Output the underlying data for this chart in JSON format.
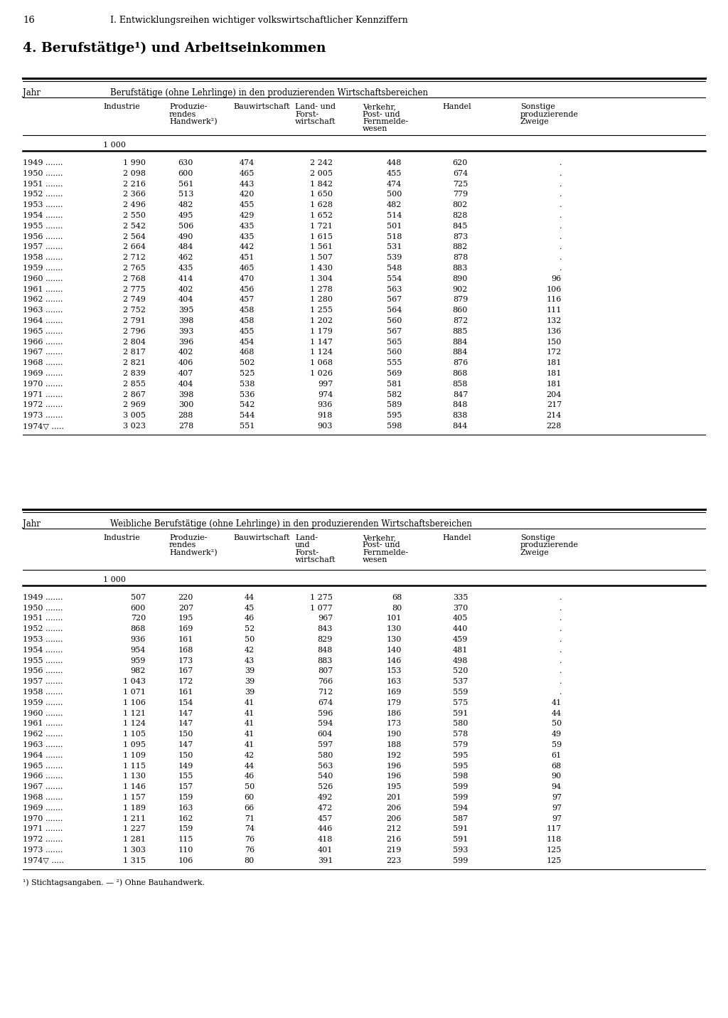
{
  "page_num": "16",
  "header_text": "I. Entwicklungsreihen wichtiger volkswirtschaftlicher Kennziffern",
  "section_title": "4. Berufstätige¹) und Arbeitseinkommen",
  "table1": {
    "title": "Berufstätige (ohne Lehrlinge) in den produzierenden Wirtschaftsbereichen",
    "unit": "1 000",
    "rows": [
      [
        "1949 .......",
        "1 990",
        "630",
        "474",
        "2 242",
        "448",
        "620",
        "."
      ],
      [
        "1950 .......",
        "2 098",
        "600",
        "465",
        "2 005",
        "455",
        "674",
        "."
      ],
      [
        "1951 .......",
        "2 216",
        "561",
        "443",
        "1 842",
        "474",
        "725",
        "."
      ],
      [
        "1952 .......",
        "2 366",
        "513",
        "420",
        "1 650",
        "500",
        "779",
        "."
      ],
      [
        "1953 .......",
        "2 496",
        "482",
        "455",
        "1 628",
        "482",
        "802",
        "."
      ],
      [
        "1954 .......",
        "2 550",
        "495",
        "429",
        "1 652",
        "514",
        "828",
        "."
      ],
      [
        "1955 .......",
        "2 542",
        "506",
        "435",
        "1 721",
        "501",
        "845",
        "."
      ],
      [
        "1956 .......",
        "2 564",
        "490",
        "435",
        "1 615",
        "518",
        "873",
        "."
      ],
      [
        "1957 .......",
        "2 664",
        "484",
        "442",
        "1 561",
        "531",
        "882",
        "."
      ],
      [
        "1958 .......",
        "2 712",
        "462",
        "451",
        "1 507",
        "539",
        "878",
        "."
      ],
      [
        "1959 .......",
        "2 765",
        "435",
        "465",
        "1 430",
        "548",
        "883",
        "."
      ],
      [
        "1960 .......",
        "2 768",
        "414",
        "470",
        "1 304",
        "554",
        "890",
        "96"
      ],
      [
        "1961 .......",
        "2 775",
        "402",
        "456",
        "1 278",
        "563",
        "902",
        "106"
      ],
      [
        "1962 .......",
        "2 749",
        "404",
        "457",
        "1 280",
        "567",
        "879",
        "116"
      ],
      [
        "1963 .......",
        "2 752",
        "395",
        "458",
        "1 255",
        "564",
        "860",
        "111"
      ],
      [
        "1964 .......",
        "2 791",
        "398",
        "458",
        "1 202",
        "560",
        "872",
        "132"
      ],
      [
        "1965 .......",
        "2 796",
        "393",
        "455",
        "1 179",
        "567",
        "885",
        "136"
      ],
      [
        "1966 .......",
        "2 804",
        "396",
        "454",
        "1 147",
        "565",
        "884",
        "150"
      ],
      [
        "1967 .......",
        "2 817",
        "402",
        "468",
        "1 124",
        "560",
        "884",
        "172"
      ],
      [
        "1968 .......",
        "2 821",
        "406",
        "502",
        "1 068",
        "555",
        "876",
        "181"
      ],
      [
        "1969 .......",
        "2 839",
        "407",
        "525",
        "1 026",
        "569",
        "868",
        "181"
      ],
      [
        "1970 .......",
        "2 855",
        "404",
        "538",
        "997",
        "581",
        "858",
        "181"
      ],
      [
        "1971 .......",
        "2 867",
        "398",
        "536",
        "974",
        "582",
        "847",
        "204"
      ],
      [
        "1972 .......",
        "2 969",
        "300",
        "542",
        "936",
        "589",
        "848",
        "217"
      ],
      [
        "1973 .......",
        "3 005",
        "288",
        "544",
        "918",
        "595",
        "838",
        "214"
      ],
      [
        "1974▽ .....",
        "3 023",
        "278",
        "551",
        "903",
        "598",
        "844",
        "228"
      ]
    ]
  },
  "table2": {
    "title": "Weibliche Berufstätige (ohne Lehrlinge) in den produzierenden Wirtschaftsbereichen",
    "unit": "1 000",
    "rows": [
      [
        "1949 .......",
        "507",
        "220",
        "44",
        "1 275",
        "68",
        "335",
        "."
      ],
      [
        "1950 .......",
        "600",
        "207",
        "45",
        "1 077",
        "80",
        "370",
        "."
      ],
      [
        "1951 .......",
        "720",
        "195",
        "46",
        "967",
        "101",
        "405",
        "."
      ],
      [
        "1952 .......",
        "868",
        "169",
        "52",
        "843",
        "130",
        "440",
        "."
      ],
      [
        "1953 .......",
        "936",
        "161",
        "50",
        "829",
        "130",
        "459",
        "."
      ],
      [
        "1954 .......",
        "954",
        "168",
        "42",
        "848",
        "140",
        "481",
        "."
      ],
      [
        "1955 .......",
        "959",
        "173",
        "43",
        "883",
        "146",
        "498",
        "."
      ],
      [
        "1956 .......",
        "982",
        "167",
        "39",
        "807",
        "153",
        "520",
        "."
      ],
      [
        "1957 .......",
        "1 043",
        "172",
        "39",
        "766",
        "163",
        "537",
        "."
      ],
      [
        "1958 .......",
        "1 071",
        "161",
        "39",
        "712",
        "169",
        "559",
        "."
      ],
      [
        "1959 .......",
        "1 106",
        "154",
        "41",
        "674",
        "179",
        "575",
        "41"
      ],
      [
        "1960 .......",
        "1 121",
        "147",
        "41",
        "596",
        "186",
        "591",
        "44"
      ],
      [
        "1961 .......",
        "1 124",
        "147",
        "41",
        "594",
        "173",
        "580",
        "50"
      ],
      [
        "1962 .......",
        "1 105",
        "150",
        "41",
        "604",
        "190",
        "578",
        "49"
      ],
      [
        "1963 .......",
        "1 095",
        "147",
        "41",
        "597",
        "188",
        "579",
        "59"
      ],
      [
        "1964 .......",
        "1 109",
        "150",
        "42",
        "580",
        "192",
        "595",
        "61"
      ],
      [
        "1965 .......",
        "1 115",
        "149",
        "44",
        "563",
        "196",
        "595",
        "68"
      ],
      [
        "1966 .......",
        "1 130",
        "155",
        "46",
        "540",
        "196",
        "598",
        "90"
      ],
      [
        "1967 .......",
        "1 146",
        "157",
        "50",
        "526",
        "195",
        "599",
        "94"
      ],
      [
        "1968 .......",
        "1 157",
        "159",
        "60",
        "492",
        "201",
        "599",
        "97"
      ],
      [
        "1969 .......",
        "1 189",
        "163",
        "66",
        "472",
        "206",
        "594",
        "97"
      ],
      [
        "1970 .......",
        "1 211",
        "162",
        "71",
        "457",
        "206",
        "587",
        "97"
      ],
      [
        "1971 .......",
        "1 227",
        "159",
        "74",
        "446",
        "212",
        "591",
        "117"
      ],
      [
        "1972 .......",
        "1 281",
        "115",
        "76",
        "418",
        "216",
        "591",
        "118"
      ],
      [
        "1973 .......",
        "1 303",
        "110",
        "76",
        "401",
        "219",
        "593",
        "125"
      ],
      [
        "1974▽ .....",
        "1 315",
        "106",
        "80",
        "391",
        "223",
        "599",
        "125"
      ]
    ]
  },
  "footnote": "¹) Stichtagsangaben. — ²) Ohne Bauhandwerk.",
  "col_headers_t1": [
    [
      "Industrie"
    ],
    [
      "Produzie-",
      "rendes",
      "Handwerk²)"
    ],
    [
      "Bauwirtschaft"
    ],
    [
      "Land- und",
      "Forst-",
      "wirtschaft"
    ],
    [
      "Verkehr,",
      "Post- und",
      "Fernmelde-",
      "wesen"
    ],
    [
      "Handel"
    ],
    [
      "Sonstige",
      "produzierende",
      "Zweige"
    ]
  ],
  "col_headers_t2": [
    [
      "Industrie"
    ],
    [
      "Produzie-",
      "rendes",
      "Handwerk²)"
    ],
    [
      "Bauwirtschaft"
    ],
    [
      "Land-",
      "und",
      "Forst-",
      "wirtschaft"
    ],
    [
      "Verkehr,",
      "Post- und",
      "Fernmelde-",
      "wesen"
    ],
    [
      "Handel"
    ],
    [
      "Sonstige",
      "produzierende",
      "Zweige"
    ]
  ]
}
